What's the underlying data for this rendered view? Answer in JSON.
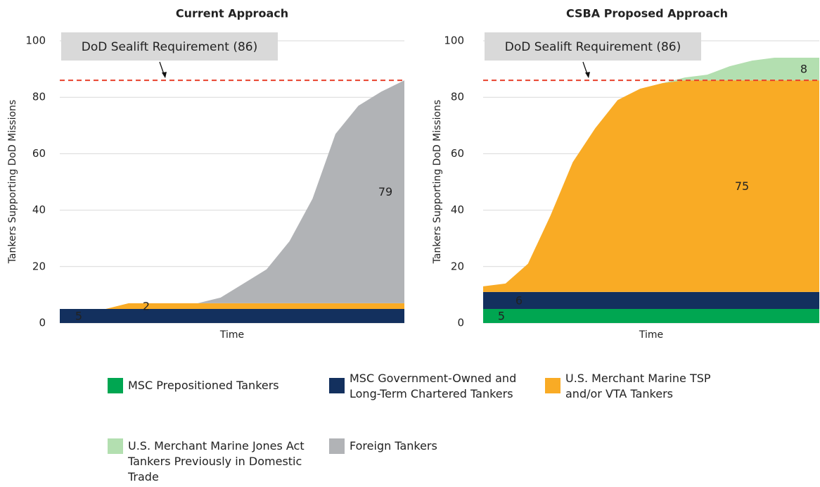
{
  "legend": [
    {
      "name": "MSC Prepositioned Tankers",
      "color": "#00a651"
    },
    {
      "name": "MSC Government-Owned and Long-Term Chartered Tankers",
      "color": "#13305e"
    },
    {
      "name": "U.S. Merchant Marine TSP and/or VTA Tankers",
      "color": "#f9ab25"
    },
    {
      "name": "U.S. Merchant Marine Jones Act Tankers Previously in Domestic Trade",
      "color": "#b3dfb0"
    },
    {
      "name": "Foreign Tankers",
      "color": "#b1b3b6"
    }
  ],
  "chart_data": [
    {
      "type": "stacked_area",
      "title": "Current Approach",
      "ylabel": "Tankers Supporting DoD Missions",
      "xlabel": "Time",
      "categories": [
        null,
        null,
        null,
        null,
        null,
        null,
        null,
        null,
        null,
        null,
        null,
        null,
        null,
        null,
        null,
        null
      ],
      "ylim": [
        0,
        100
      ],
      "yticks": [
        0,
        20,
        40,
        60,
        80,
        100
      ],
      "grid": true,
      "reference": {
        "value": 86,
        "label": "DoD Sealift Requirement (86)",
        "color": "#e8412c"
      },
      "series": [
        {
          "name": "MSC Government-Owned and Long-Term Chartered Tankers",
          "values": [
            5,
            5,
            5,
            5,
            5,
            5,
            5,
            5,
            5,
            5,
            5,
            5,
            5,
            5,
            5,
            5
          ]
        },
        {
          "name": "U.S. Merchant Marine TSP and/or VTA Tankers",
          "values": [
            0,
            0,
            0,
            2,
            2,
            2,
            2,
            2,
            2,
            2,
            2,
            2,
            2,
            2,
            2,
            2
          ]
        },
        {
          "name": "Foreign Tankers",
          "values": [
            0,
            0,
            0,
            0,
            0,
            0,
            0,
            2,
            7,
            12,
            22,
            37,
            60,
            70,
            75,
            79
          ]
        }
      ]
    },
    {
      "type": "stacked_area",
      "title": "CSBA Proposed Approach",
      "ylabel": "Tankers Supporting DoD Missions",
      "xlabel": "Time",
      "categories": [
        null,
        null,
        null,
        null,
        null,
        null,
        null,
        null,
        null,
        null,
        null,
        null,
        null,
        null,
        null,
        null
      ],
      "ylim": [
        0,
        100
      ],
      "yticks": [
        0,
        20,
        40,
        60,
        80,
        100
      ],
      "grid": true,
      "reference": {
        "value": 86,
        "label": "DoD Sealift Requirement (86)",
        "color": "#e8412c"
      },
      "series": [
        {
          "name": "MSC Prepositioned Tankers",
          "values": [
            5,
            5,
            5,
            5,
            5,
            5,
            5,
            5,
            5,
            5,
            5,
            5,
            5,
            5,
            5,
            5
          ]
        },
        {
          "name": "MSC Government-Owned and Long-Term Chartered Tankers",
          "values": [
            6,
            6,
            6,
            6,
            6,
            6,
            6,
            6,
            6,
            6,
            6,
            6,
            6,
            6,
            6,
            6
          ]
        },
        {
          "name": "U.S. Merchant Marine TSP and/or VTA Tankers",
          "values": [
            2,
            3,
            10,
            27,
            46,
            58,
            68,
            72,
            74,
            75,
            75,
            75,
            75,
            75,
            75,
            75
          ]
        },
        {
          "name": "U.S. Merchant Marine Jones Act Tankers Previously in Domestic Trade",
          "values": [
            0,
            0,
            0,
            0,
            0,
            0,
            0,
            0,
            0,
            1,
            2,
            5,
            7,
            8,
            8,
            8
          ]
        }
      ]
    }
  ]
}
